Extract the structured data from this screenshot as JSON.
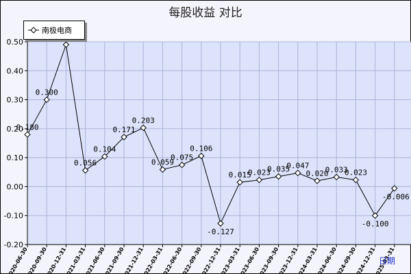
{
  "chart_data": {
    "type": "line",
    "title": "每股收益  对比",
    "xlabel": "日期",
    "ylabel": "",
    "ylim": [
      -0.2,
      0.5
    ],
    "yticks": [
      "0.50",
      "0.40",
      "0.30",
      "0.20",
      "0.10",
      "0.00",
      "-0.10",
      "-0.20"
    ],
    "yticks_values": [
      0.5,
      0.4,
      0.3,
      0.2,
      0.1,
      0.0,
      -0.1,
      -0.2
    ],
    "grid": true,
    "legend_position": "top-left",
    "categories": [
      "2020-06-30",
      "2020-09-30",
      "2020-12-31",
      "2021-03-31",
      "2021-06-30",
      "2021-09-30",
      "2021-12-31",
      "2022-03-31",
      "2022-06-30",
      "2022-09-30",
      "2022-12-31",
      "2023-03-31",
      "2023-06-30",
      "2023-09-30",
      "2023-12-31",
      "2024-03-31",
      "2024-06-30",
      "2024-09-30",
      "2024-12-31",
      "2025-03-31"
    ],
    "series": [
      {
        "name": "南极电商",
        "values": [
          0.18,
          0.3,
          0.49,
          0.056,
          0.104,
          0.171,
          0.203,
          0.059,
          0.075,
          0.106,
          -0.127,
          0.015,
          0.023,
          0.035,
          0.047,
          0.02,
          0.033,
          0.023,
          -0.1,
          -0.006
        ],
        "labels": [
          "0.180",
          "0.300",
          "",
          "0.056",
          "0.104",
          "0.171",
          "0.203",
          "0.059",
          "0.075",
          "0.106",
          "-0.127",
          "0.015",
          "0.023",
          "0.035",
          "0.047",
          "0.020",
          "0.033",
          "0.023",
          "-0.100",
          "-0.006"
        ]
      }
    ]
  },
  "colors": {
    "plot_background": "#dde3fb",
    "grid": "#a9b3d8",
    "line": "#000000",
    "marker_fill": "#ffffff"
  }
}
